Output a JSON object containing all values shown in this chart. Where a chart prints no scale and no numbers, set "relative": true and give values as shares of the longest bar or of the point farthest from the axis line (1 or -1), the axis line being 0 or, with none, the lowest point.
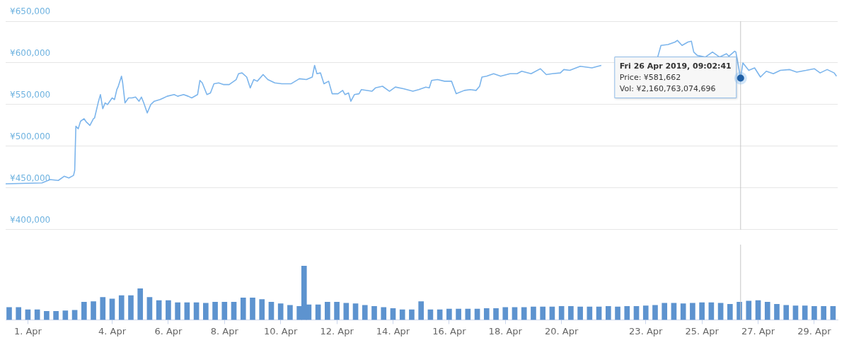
{
  "chart_data": [
    {
      "type": "line",
      "color": "#7cb5ec",
      "grid": "y",
      "tick_labels": "y",
      "xlim": [
        "2019-03-31T05:00",
        "2019-04-29T20:00"
      ],
      "ylim": [
        400000,
        650000
      ],
      "yticks": [
        {
          "value": 400000,
          "label": "¥400,000"
        },
        {
          "value": 450000,
          "label": "¥450,000"
        },
        {
          "value": 500000,
          "label": "¥500,000"
        },
        {
          "value": 550000,
          "label": "¥550,000"
        },
        {
          "value": 600000,
          "label": "¥600,000"
        },
        {
          "value": 650000,
          "label": "¥650,000"
        }
      ],
      "x": [
        "2019-03-31T05:00",
        "2019-04-01T12:00",
        "2019-04-01T19:00",
        "2019-04-02T02:00",
        "2019-04-02T07:00",
        "2019-04-02T11:00",
        "2019-04-02T15:00",
        "2019-04-02T16:00",
        "2019-04-02T17:00",
        "2019-04-02T19:00",
        "2019-04-02T21:00",
        "2019-04-03T00:00",
        "2019-04-03T02:00",
        "2019-04-03T05:00",
        "2019-04-03T08:00",
        "2019-04-03T09:00",
        "2019-04-03T12:00",
        "2019-04-03T14:00",
        "2019-04-03T16:00",
        "2019-04-03T18:00",
        "2019-04-03T20:00",
        "2019-04-04T00:00",
        "2019-04-04T02:00",
        "2019-04-04T04:00",
        "2019-04-04T05:00",
        "2019-04-04T08:00",
        "2019-04-04T09:00",
        "2019-04-04T11:00",
        "2019-04-04T14:00",
        "2019-04-04T17:00",
        "2019-04-04T20:00",
        "2019-04-04T23:00",
        "2019-04-05T01:00",
        "2019-04-05T03:00",
        "2019-04-05T06:00",
        "2019-04-05T09:00",
        "2019-04-05T12:00",
        "2019-04-05T17:00",
        "2019-04-05T20:00",
        "2019-04-05T23:00",
        "2019-04-06T05:00",
        "2019-04-06T08:00",
        "2019-04-06T13:00",
        "2019-04-06T17:00",
        "2019-04-06T20:00",
        "2019-04-07T01:00",
        "2019-04-07T03:00",
        "2019-04-07T05:00",
        "2019-04-07T09:00",
        "2019-04-07T12:00",
        "2019-04-07T15:00",
        "2019-04-07T19:00",
        "2019-04-07T23:00",
        "2019-04-08T04:00",
        "2019-04-08T10:00",
        "2019-04-08T12:00",
        "2019-04-08T15:00",
        "2019-04-08T19:00",
        "2019-04-08T22:00",
        "2019-04-09T01:00",
        "2019-04-09T04:00",
        "2019-04-09T09:00",
        "2019-04-09T13:00",
        "2019-04-09T19:00",
        "2019-04-10T01:00",
        "2019-04-10T09:00",
        "2019-04-10T16:00",
        "2019-04-10T22:00",
        "2019-04-11T03:00",
        "2019-04-11T05:00",
        "2019-04-11T07:00",
        "2019-04-11T10:00",
        "2019-04-11T13:00",
        "2019-04-11T17:00",
        "2019-04-11T20:00",
        "2019-04-12T01:00",
        "2019-04-12T05:00",
        "2019-04-12T07:00",
        "2019-04-12T10:00",
        "2019-04-12T12:00",
        "2019-04-12T15:00",
        "2019-04-12T19:00",
        "2019-04-12T21:00",
        "2019-04-13T06:00",
        "2019-04-13T09:00",
        "2019-04-13T15:00",
        "2019-04-13T21:00",
        "2019-04-14T02:00",
        "2019-04-14T09:00",
        "2019-04-14T17:00",
        "2019-04-14T22:00",
        "2019-04-15T04:00",
        "2019-04-15T07:00",
        "2019-04-15T09:00",
        "2019-04-15T14:00",
        "2019-04-15T20:00",
        "2019-04-16T02:00",
        "2019-04-16T06:00",
        "2019-04-16T13:00",
        "2019-04-16T18:00",
        "2019-04-16T23:00",
        "2019-04-17T02:00",
        "2019-04-17T04:00",
        "2019-04-17T08:00",
        "2019-04-17T14:00",
        "2019-04-17T20:00",
        "2019-04-18T04:00",
        "2019-04-18T10:00",
        "2019-04-18T14:00",
        "2019-04-18T22:00",
        "2019-04-19T06:00",
        "2019-04-19T11:00",
        "2019-04-19T16:00",
        "2019-04-19T23:00",
        "2019-04-20T02:00",
        "2019-04-20T07:00",
        "2019-04-20T16:00",
        "2019-04-21T02:00",
        "2019-04-21T10:00",
        "2019-04-21T16:00",
        "2019-04-22T15:00",
        "2019-04-23T10:00",
        "2019-04-23T13:00",
        "2019-04-23T19:00",
        "2019-04-24T01:00",
        "2019-04-24T03:00",
        "2019-04-24T07:00",
        "2019-04-24T12:00",
        "2019-04-24T15:00",
        "2019-04-24T17:00",
        "2019-04-24T20:00",
        "2019-04-25T03:00",
        "2019-04-25T09:00",
        "2019-04-25T15:00",
        "2019-04-25T21:00",
        "2019-04-25T23:00",
        "2019-04-26T04:00",
        "2019-04-26T05:00",
        "2019-04-26T09:02",
        "2019-04-26T11:00",
        "2019-04-26T16:00",
        "2019-04-26T21:00",
        "2019-04-27T02:00",
        "2019-04-27T07:00",
        "2019-04-27T13:00",
        "2019-04-27T19:00",
        "2019-04-28T03:00",
        "2019-04-28T09:00",
        "2019-04-28T17:00",
        "2019-04-29T00:00",
        "2019-04-29T05:00",
        "2019-04-29T11:00",
        "2019-04-29T17:00",
        "2019-04-29T19:00"
      ],
      "values": [
        455000,
        456000,
        460000,
        459000,
        464000,
        462000,
        465000,
        471000,
        524000,
        521000,
        530000,
        533000,
        529000,
        525000,
        533000,
        534000,
        552000,
        562000,
        545000,
        552000,
        550000,
        558000,
        556000,
        568000,
        571000,
        584000,
        576000,
        552000,
        558000,
        558000,
        559000,
        554000,
        559000,
        552000,
        540000,
        550000,
        554000,
        556000,
        558000,
        560000,
        562000,
        560000,
        562000,
        560000,
        558000,
        562000,
        579000,
        576000,
        562000,
        564000,
        575000,
        576000,
        574000,
        574000,
        580000,
        587000,
        588000,
        583000,
        570000,
        580000,
        578000,
        586000,
        580000,
        576000,
        575000,
        575000,
        581000,
        580000,
        583000,
        597000,
        587000,
        588000,
        575000,
        578000,
        563000,
        563000,
        567000,
        562000,
        564000,
        554000,
        562000,
        563000,
        568000,
        566000,
        570000,
        572000,
        566000,
        571000,
        569000,
        566000,
        568000,
        571000,
        570000,
        579000,
        580000,
        578000,
        578000,
        563000,
        567000,
        568000,
        567000,
        572000,
        583000,
        584000,
        587000,
        584000,
        587000,
        587000,
        590000,
        587000,
        593000,
        586000,
        587000,
        588000,
        592000,
        591000,
        596000,
        594000,
        597000,
        null,
        null,
        606000,
        621000,
        622000,
        625000,
        627000,
        621000,
        625000,
        626000,
        613000,
        609000,
        607000,
        613000,
        607000,
        611000,
        608000,
        614000,
        613000,
        581662,
        600000,
        591000,
        594000,
        583000,
        590000,
        587000,
        591000,
        592000,
        589000,
        591000,
        593000,
        588000,
        592000,
        588000,
        584000
      ],
      "ref_lines": [
        {
          "axis": "x",
          "value": "2019-04-26T09:02",
          "color": "#c8c8c8"
        }
      ],
      "annotations": [
        {
          "text": "Fri 26 Apr 2019, 09:02:41\nPrice: ¥581,662\nVol: ¥2,160,763,074,696",
          "x": "2019-04-26T09:02",
          "y": 581662
        }
      ]
    },
    {
      "type": "bar",
      "color": "#5d93cf",
      "relative": true,
      "xlim": [
        "2019-03-31T05:00",
        "2019-04-29T20:00"
      ],
      "xticks": [
        {
          "value": "2019-04-01",
          "label": "1. Apr"
        },
        {
          "value": "2019-04-04",
          "label": "4. Apr"
        },
        {
          "value": "2019-04-06",
          "label": "6. Apr"
        },
        {
          "value": "2019-04-08",
          "label": "8. Apr"
        },
        {
          "value": "2019-04-10",
          "label": "10. Apr"
        },
        {
          "value": "2019-04-12",
          "label": "12. Apr"
        },
        {
          "value": "2019-04-14",
          "label": "14. Apr"
        },
        {
          "value": "2019-04-16",
          "label": "16. Apr"
        },
        {
          "value": "2019-04-18",
          "label": "18. Apr"
        },
        {
          "value": "2019-04-20",
          "label": "20. Apr"
        },
        {
          "value": "2019-04-23",
          "label": "23. Apr"
        },
        {
          "value": "2019-04-25",
          "label": "25. Apr"
        },
        {
          "value": "2019-04-27",
          "label": "27. Apr"
        },
        {
          "value": "2019-04-29",
          "label": "29. Apr"
        }
      ],
      "x": [
        "2019-03-31T08:00",
        "2019-03-31T16:00",
        "2019-04-01T00:00",
        "2019-04-01T08:00",
        "2019-04-01T16:00",
        "2019-04-02T00:00",
        "2019-04-02T08:00",
        "2019-04-02T16:00",
        "2019-04-03T00:00",
        "2019-04-03T08:00",
        "2019-04-03T16:00",
        "2019-04-04T00:00",
        "2019-04-04T08:00",
        "2019-04-04T16:00",
        "2019-04-05T00:00",
        "2019-04-05T08:00",
        "2019-04-05T16:00",
        "2019-04-06T00:00",
        "2019-04-06T08:00",
        "2019-04-06T16:00",
        "2019-04-07T00:00",
        "2019-04-07T08:00",
        "2019-04-07T16:00",
        "2019-04-08T00:00",
        "2019-04-08T08:00",
        "2019-04-08T16:00",
        "2019-04-09T00:00",
        "2019-04-09T08:00",
        "2019-04-09T16:00",
        "2019-04-10T00:00",
        "2019-04-10T08:00",
        "2019-04-10T16:00",
        "2019-04-10T20:00",
        "2019-04-11T00:00",
        "2019-04-11T08:00",
        "2019-04-11T16:00",
        "2019-04-12T00:00",
        "2019-04-12T08:00",
        "2019-04-12T16:00",
        "2019-04-13T00:00",
        "2019-04-13T08:00",
        "2019-04-13T16:00",
        "2019-04-14T00:00",
        "2019-04-14T08:00",
        "2019-04-14T16:00",
        "2019-04-15T00:00",
        "2019-04-15T08:00",
        "2019-04-15T16:00",
        "2019-04-16T00:00",
        "2019-04-16T08:00",
        "2019-04-16T16:00",
        "2019-04-17T00:00",
        "2019-04-17T08:00",
        "2019-04-17T16:00",
        "2019-04-18T00:00",
        "2019-04-18T08:00",
        "2019-04-18T16:00",
        "2019-04-19T00:00",
        "2019-04-19T08:00",
        "2019-04-19T16:00",
        "2019-04-20T00:00",
        "2019-04-20T08:00",
        "2019-04-20T16:00",
        "2019-04-21T00:00",
        "2019-04-21T08:00",
        "2019-04-21T16:00",
        "2019-04-22T00:00",
        "2019-04-22T08:00",
        "2019-04-22T16:00",
        "2019-04-23T00:00",
        "2019-04-23T08:00",
        "2019-04-23T16:00",
        "2019-04-24T00:00",
        "2019-04-24T08:00",
        "2019-04-24T16:00",
        "2019-04-25T00:00",
        "2019-04-25T08:00",
        "2019-04-25T16:00",
        "2019-04-26T00:00",
        "2019-04-26T08:00",
        "2019-04-26T16:00",
        "2019-04-27T00:00",
        "2019-04-27T08:00",
        "2019-04-27T16:00",
        "2019-04-28T00:00",
        "2019-04-28T08:00",
        "2019-04-28T16:00",
        "2019-04-29T00:00",
        "2019-04-29T08:00",
        "2019-04-29T16:00"
      ],
      "values": [
        0.23,
        0.23,
        0.19,
        0.19,
        0.16,
        0.16,
        0.17,
        0.18,
        0.33,
        0.34,
        0.42,
        0.39,
        0.45,
        0.45,
        0.58,
        0.42,
        0.36,
        0.36,
        0.32,
        0.32,
        0.32,
        0.31,
        0.33,
        0.33,
        0.33,
        0.41,
        0.41,
        0.38,
        0.33,
        0.3,
        0.27,
        0.25,
        1,
        0.28,
        0.28,
        0.33,
        0.33,
        0.31,
        0.3,
        0.27,
        0.25,
        0.23,
        0.21,
        0.19,
        0.19,
        0.34,
        0.19,
        0.19,
        0.2,
        0.2,
        0.2,
        0.2,
        0.21,
        0.21,
        0.23,
        0.23,
        0.23,
        0.24,
        0.24,
        0.24,
        0.25,
        0.25,
        0.24,
        0.24,
        0.24,
        0.25,
        0.24,
        0.25,
        0.25,
        0.26,
        0.27,
        0.31,
        0.31,
        0.3,
        0.31,
        0.32,
        0.32,
        0.31,
        0.29,
        0.33,
        0.35,
        0.36,
        0.33,
        0.29,
        0.27,
        0.26,
        0.26,
        0.25,
        0.25,
        0.25
      ],
      "ref_lines": [
        {
          "axis": "x",
          "value": "2019-04-26T09:02",
          "color": "#c8c8c8"
        }
      ]
    }
  ]
}
